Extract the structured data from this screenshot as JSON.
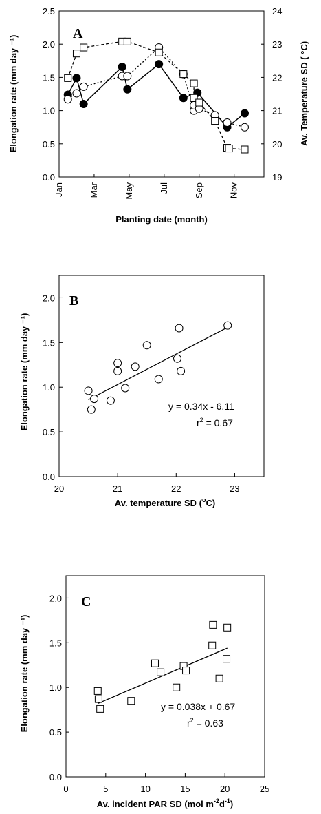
{
  "chart_data": [
    {
      "type": "line",
      "panel_label": "A",
      "xlabel": "Planting date (month)",
      "ylabel": "Elongation rate (mm day ⁻¹)",
      "ylabel_right": "Av. Temperature SD (  °C)",
      "x_tick_labels": [
        "Jan",
        "Mar",
        "May",
        "Jul",
        "Sep",
        "Nov"
      ],
      "x_tick_values": [
        0,
        2,
        4,
        6,
        8,
        10
      ],
      "xlim": [
        0,
        11.7
      ],
      "ylim": [
        0,
        2.5
      ],
      "y_ticks": [
        "0.0",
        "0.5",
        "1.0",
        "1.5",
        "2.0",
        "2.5"
      ],
      "ylim_right": [
        19,
        24
      ],
      "y_ticks_right": [
        "19",
        "20",
        "21",
        "22",
        "23",
        "24"
      ],
      "series": [
        {
          "marker": "filled-circle",
          "line": "solid",
          "axis": "left",
          "x": [
            0.5,
            1.0,
            1.4,
            3.6,
            3.9,
            5.7,
            7.1,
            7.9,
            9.6,
            10.6
          ],
          "y": [
            1.24,
            1.49,
            1.1,
            1.66,
            1.32,
            1.7,
            1.19,
            1.27,
            0.75,
            0.96
          ]
        },
        {
          "marker": "open-circle",
          "line": "dotted",
          "axis": "left",
          "x": [
            0.5,
            1.0,
            1.4,
            3.6,
            3.9,
            5.7,
            7.1,
            7.7,
            7.7,
            8.0,
            8.9,
            9.6,
            10.6
          ],
          "y": [
            1.17,
            1.26,
            1.36,
            1.52,
            1.52,
            1.95,
            1.55,
            1.0,
            1.08,
            1.03,
            0.93,
            0.82,
            0.75
          ]
        },
        {
          "marker": "open-square",
          "line": "dashed",
          "axis": "right",
          "x": [
            0.5,
            1.0,
            1.4,
            3.6,
            3.9,
            5.7,
            7.1,
            7.7,
            7.7,
            8.0,
            8.9,
            9.6,
            9.7,
            10.6
          ],
          "y": [
            21.98,
            22.72,
            22.9,
            23.08,
            23.08,
            22.75,
            22.1,
            21.82,
            21.38,
            21.24,
            20.69,
            19.88,
            19.86,
            19.83
          ]
        }
      ]
    },
    {
      "type": "scatter",
      "panel_label": "B",
      "xlabel": "Av. temperature SD (",
      "xlabel_unit_sup": "o",
      "xlabel_unit_tail": "C)",
      "ylabel": "Elongation rate (mm day ⁻¹)",
      "xlim": [
        20,
        23.5
      ],
      "ylim": [
        0,
        2.25
      ],
      "x_ticks": [
        "20",
        "21",
        "22",
        "23"
      ],
      "y_ticks": [
        "0.0",
        "0.5",
        "1.0",
        "1.5",
        "2.0"
      ],
      "series": [
        {
          "marker": "open-circle",
          "x": [
            20.5,
            20.55,
            20.6,
            20.88,
            21.0,
            21.0,
            21.13,
            21.3,
            21.5,
            21.7,
            22.02,
            22.05,
            22.08,
            22.88
          ],
          "y": [
            0.96,
            0.75,
            0.87,
            0.85,
            1.27,
            1.18,
            0.99,
            1.23,
            1.47,
            1.09,
            1.32,
            1.66,
            1.18,
            1.69
          ]
        }
      ],
      "fit_line": {
        "x": [
          20.5,
          22.88
        ],
        "y": [
          0.86,
          1.67
        ]
      },
      "equation": "y = 0.34x - 6.11",
      "r2_prefix": "r",
      "r2_sup": "2",
      "r2_tail": " = 0.67"
    },
    {
      "type": "scatter",
      "panel_label": "C",
      "xlabel": "Av. incident PAR SD (mol m",
      "xlabel_sup1": "-2",
      "xlabel_mid": "d",
      "xlabel_sup2": "-1",
      "xlabel_tail": ")",
      "ylabel": "Elongation rate (mm day ⁻¹)",
      "xlim": [
        0,
        25
      ],
      "ylim": [
        0,
        2.25
      ],
      "x_ticks": [
        "0",
        "5",
        "10",
        "15",
        "20",
        "25"
      ],
      "y_ticks": [
        "0.0",
        "0.5",
        "1.0",
        "1.5",
        "2.0"
      ],
      "series": [
        {
          "marker": "open-square",
          "x": [
            4.0,
            4.1,
            4.3,
            8.2,
            11.2,
            11.9,
            13.9,
            14.8,
            15.1,
            18.4,
            18.5,
            19.3,
            20.2,
            20.3
          ],
          "y": [
            0.96,
            0.87,
            0.76,
            0.85,
            1.27,
            1.17,
            1.0,
            1.24,
            1.19,
            1.47,
            1.7,
            1.1,
            1.32,
            1.67
          ]
        }
      ],
      "fit_line": {
        "x": [
          4.0,
          20.3
        ],
        "y": [
          0.82,
          1.44
        ]
      },
      "equation": "y = 0.038x + 0.67",
      "r2_prefix": "r",
      "r2_sup": "2",
      "r2_tail": " = 0.63"
    }
  ]
}
